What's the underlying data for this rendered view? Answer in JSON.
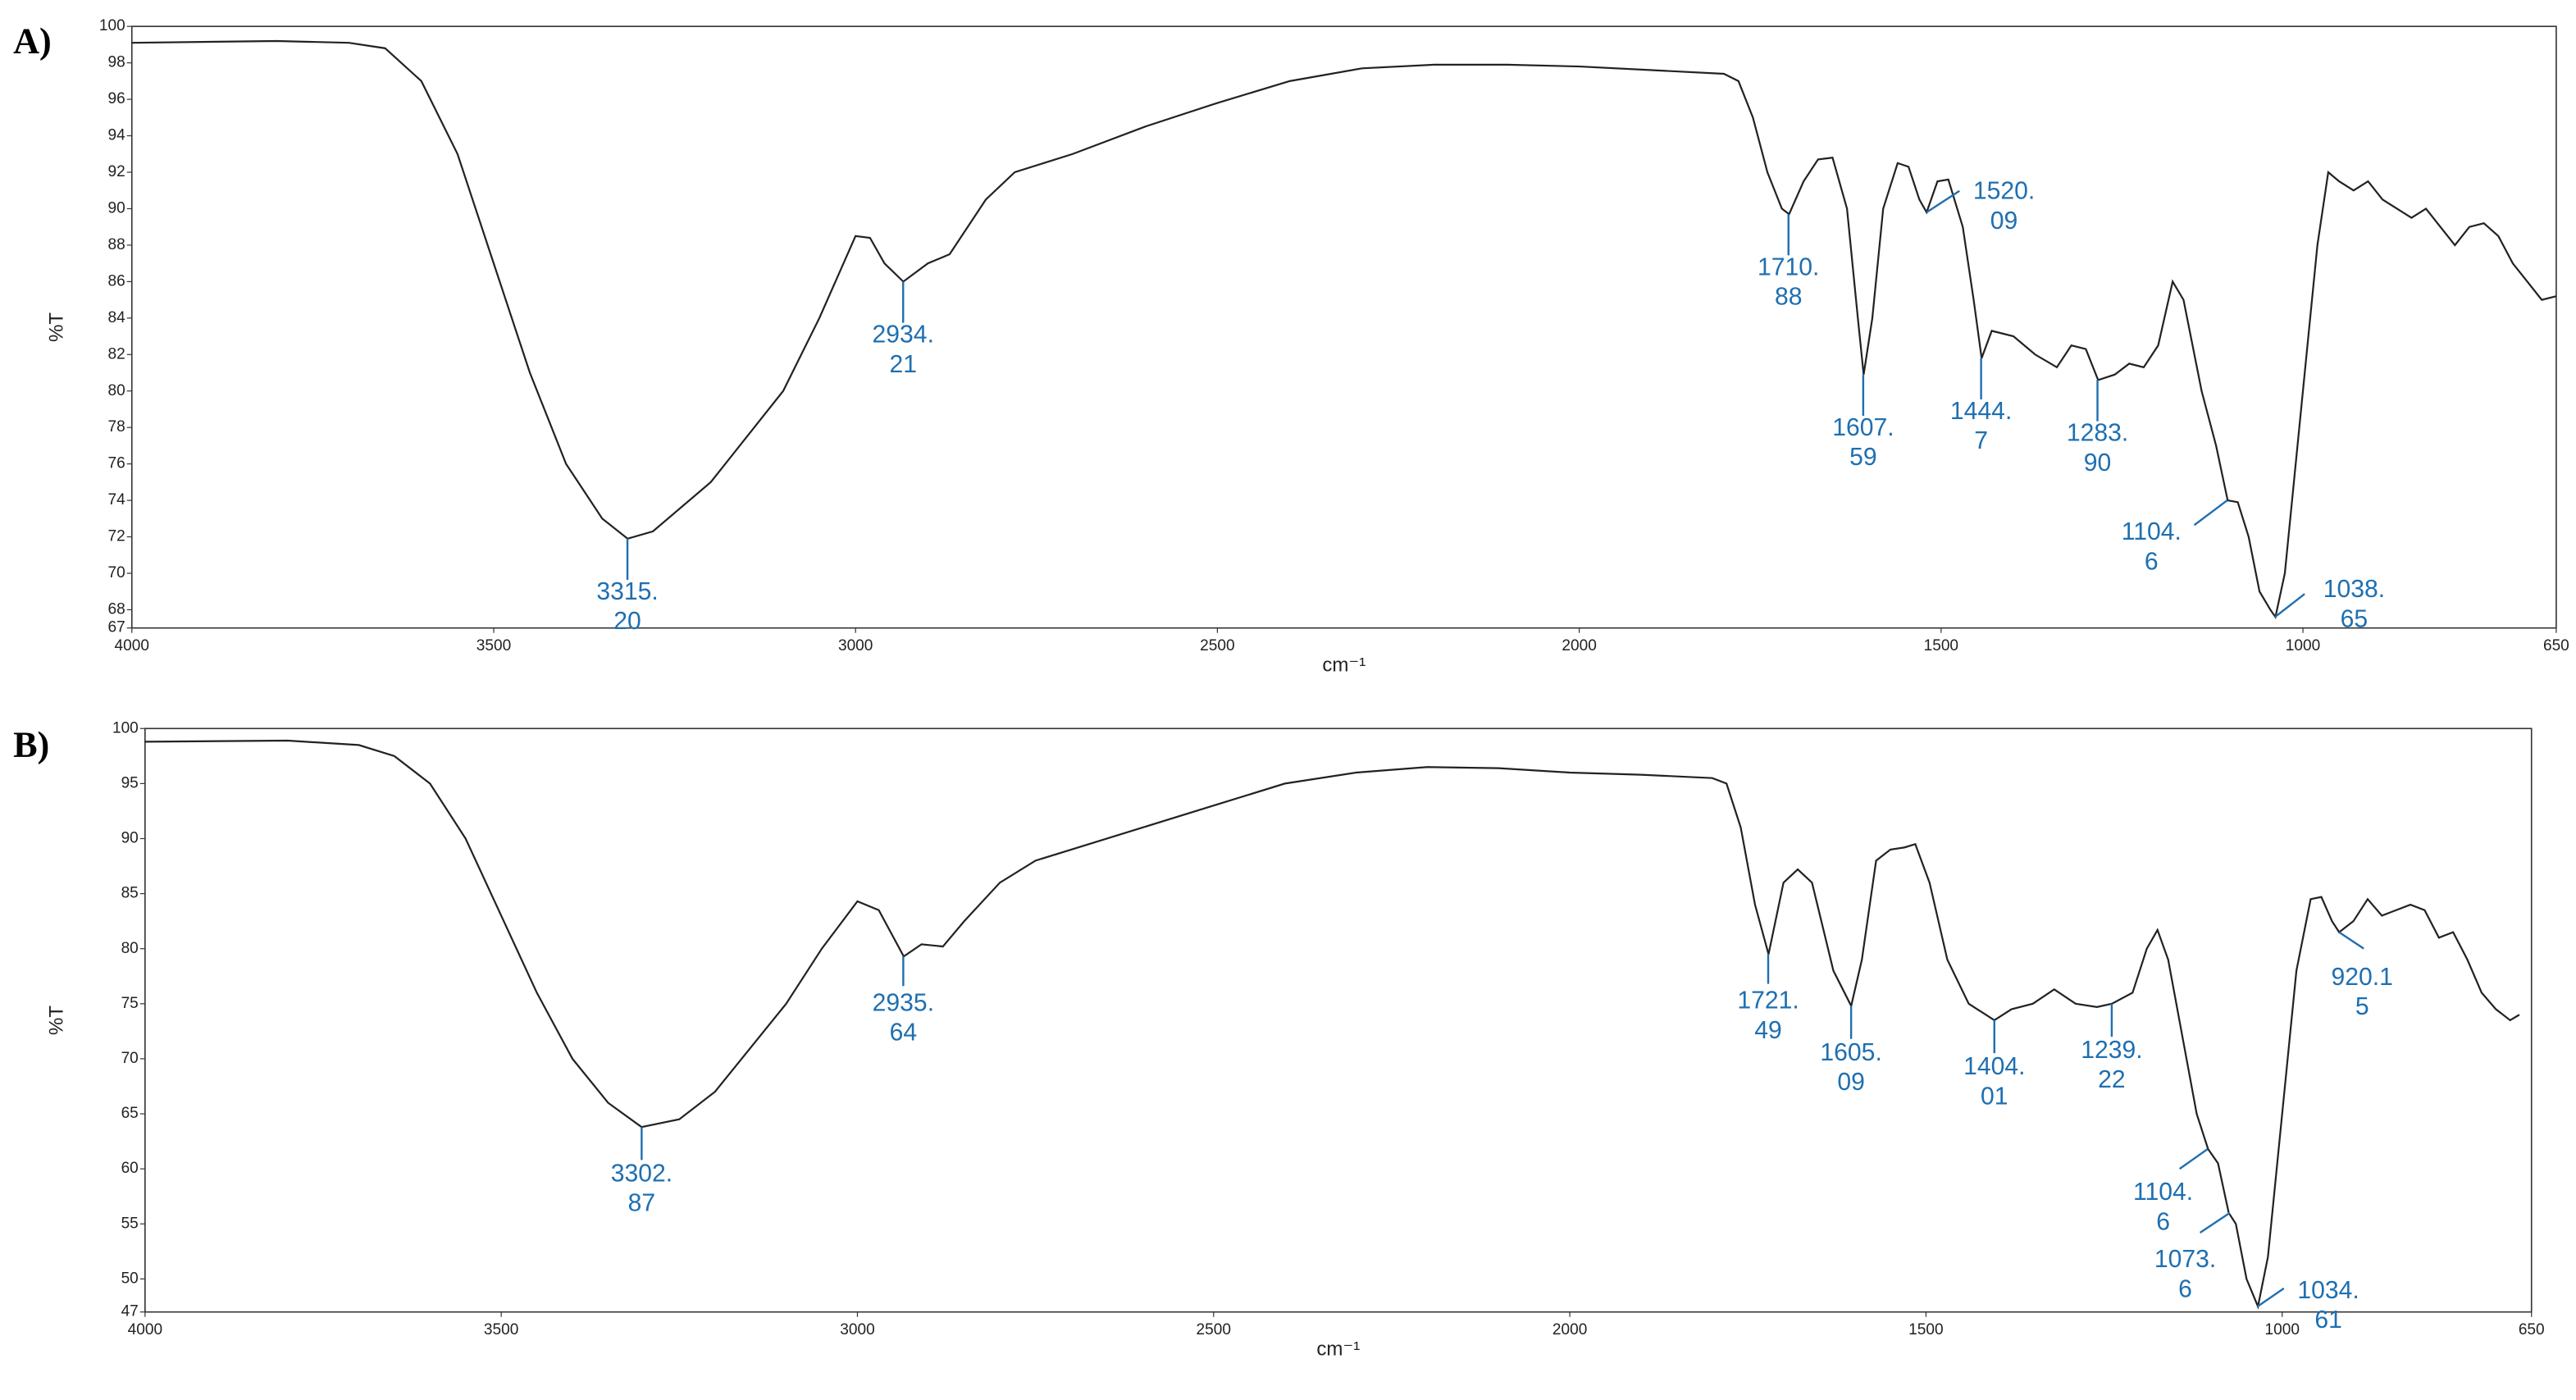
{
  "chart_data": [
    {
      "type": "line",
      "panel_label": "A)",
      "x_label": "cm⁻¹",
      "y_label": "%T",
      "color": "#222222",
      "annotation_color": "#1f6fb0",
      "xlim": [
        4000,
        650
      ],
      "xticks": [
        4000,
        3500,
        3000,
        2500,
        2000,
        1500,
        1000,
        650
      ],
      "ylim": [
        67,
        100
      ],
      "yticks": [
        67,
        68,
        70,
        72,
        74,
        76,
        78,
        80,
        82,
        84,
        86,
        88,
        90,
        92,
        94,
        96,
        98,
        100
      ],
      "x": [
        4000,
        3800,
        3700,
        3650,
        3600,
        3550,
        3500,
        3450,
        3400,
        3350,
        3315,
        3280,
        3200,
        3100,
        3050,
        3000,
        2980,
        2960,
        2934,
        2900,
        2870,
        2820,
        2780,
        2700,
        2600,
        2500,
        2400,
        2300,
        2200,
        2100,
        2000,
        1900,
        1800,
        1780,
        1760,
        1740,
        1720,
        1710,
        1690,
        1670,
        1650,
        1630,
        1615,
        1607,
        1595,
        1580,
        1560,
        1545,
        1530,
        1520,
        1505,
        1490,
        1470,
        1455,
        1444,
        1430,
        1400,
        1370,
        1340,
        1320,
        1300,
        1283,
        1260,
        1240,
        1220,
        1200,
        1180,
        1165,
        1140,
        1120,
        1104,
        1090,
        1075,
        1060,
        1045,
        1038,
        1025,
        1000,
        980,
        965,
        950,
        930,
        910,
        890,
        870,
        850,
        830,
        810,
        790,
        770,
        750,
        730,
        710,
        690,
        670,
        650
      ],
      "values": [
        99.1,
        99.2,
        99.1,
        98.8,
        97,
        93,
        87,
        81,
        76,
        73,
        71.9,
        72.3,
        75,
        80,
        84,
        88.5,
        88.4,
        87,
        86,
        87,
        87.5,
        90.5,
        92,
        93,
        94.5,
        95.8,
        97,
        97.7,
        97.9,
        97.9,
        97.8,
        97.6,
        97.4,
        97,
        95,
        92,
        90,
        89.7,
        91.5,
        92.7,
        92.8,
        90,
        84,
        80.9,
        84,
        90,
        92.5,
        92.3,
        90.5,
        89.8,
        91.5,
        91.6,
        89,
        85,
        81.8,
        83.3,
        83,
        82,
        81.3,
        82.5,
        82.3,
        80.6,
        80.9,
        81.5,
        81.3,
        82.5,
        86,
        85,
        80,
        77,
        74,
        73.9,
        72,
        69,
        68,
        67.6,
        70,
        80,
        88,
        92,
        91.5,
        91,
        91.5,
        90.5,
        90,
        89.5,
        90,
        89,
        88,
        89,
        89.2,
        88.5,
        87,
        86,
        85,
        85.2
      ],
      "annotations": [
        {
          "x": 3315.2,
          "y": 71.9,
          "label": [
            "3315.",
            "20"
          ]
        },
        {
          "x": 2934.21,
          "y": 86,
          "label": [
            "2934.",
            "21"
          ]
        },
        {
          "x": 1710.88,
          "y": 89.7,
          "label": [
            "1710.",
            "88"
          ]
        },
        {
          "x": 1607.59,
          "y": 80.9,
          "label": [
            "1607.",
            "59"
          ]
        },
        {
          "x": 1520.09,
          "y": 89.8,
          "label": [
            "1520.",
            "09"
          ]
        },
        {
          "x": 1444.7,
          "y": 81.8,
          "label": [
            "1444.",
            "7"
          ]
        },
        {
          "x": 1283.9,
          "y": 80.6,
          "label": [
            "1283.",
            "90"
          ]
        },
        {
          "x": 1104.6,
          "y": 74,
          "label": [
            "1104.",
            "6"
          ]
        },
        {
          "x": 1038.65,
          "y": 67.6,
          "label": [
            "1038.",
            "65"
          ]
        }
      ]
    },
    {
      "type": "line",
      "panel_label": "B)",
      "x_label": "cm⁻¹",
      "y_label": "%T",
      "color": "#222222",
      "annotation_color": "#1f6fb0",
      "xlim": [
        4000,
        650
      ],
      "xticks": [
        4000,
        3500,
        3000,
        2500,
        2000,
        1500,
        1000,
        650
      ],
      "ylim": [
        47,
        100
      ],
      "yticks": [
        47,
        50,
        55,
        60,
        65,
        70,
        75,
        80,
        85,
        90,
        95,
        100
      ],
      "x": [
        4000,
        3800,
        3700,
        3650,
        3600,
        3550,
        3500,
        3450,
        3400,
        3350,
        3303,
        3250,
        3200,
        3100,
        3050,
        3000,
        2970,
        2935,
        2910,
        2880,
        2850,
        2800,
        2750,
        2700,
        2600,
        2500,
        2400,
        2300,
        2200,
        2100,
        2000,
        1900,
        1800,
        1780,
        1760,
        1740,
        1721,
        1700,
        1680,
        1660,
        1630,
        1605,
        1590,
        1570,
        1550,
        1530,
        1515,
        1495,
        1470,
        1440,
        1404,
        1380,
        1350,
        1320,
        1290,
        1260,
        1239,
        1210,
        1190,
        1175,
        1160,
        1140,
        1120,
        1104,
        1090,
        1075,
        1065,
        1050,
        1034,
        1020,
        1000,
        980,
        960,
        945,
        930,
        920,
        900,
        880,
        860,
        840,
        820,
        800,
        780,
        760,
        740,
        720,
        700,
        680,
        667
      ],
      "values": [
        98.8,
        98.9,
        98.5,
        97.5,
        95,
        90,
        83,
        76,
        70,
        66,
        63.8,
        64.5,
        67,
        75,
        80,
        84.3,
        83.5,
        79.3,
        80.4,
        80.2,
        82.5,
        86,
        88,
        89,
        91,
        93,
        95,
        96,
        96.5,
        96.4,
        96,
        95.8,
        95.5,
        95,
        91,
        84,
        79.5,
        86,
        87.2,
        86,
        78,
        74.8,
        79,
        88,
        89,
        89.2,
        89.5,
        86,
        79,
        75,
        73.5,
        74.5,
        75,
        76.3,
        75,
        74.7,
        75,
        76,
        80,
        81.7,
        79,
        72,
        65,
        61.8,
        60.5,
        56,
        55,
        50,
        47.5,
        52,
        65,
        78,
        84.5,
        84.7,
        82.5,
        81.5,
        82.5,
        84.5,
        83,
        83.5,
        84,
        83.5,
        81,
        81.5,
        79,
        76,
        74.5,
        73.5,
        74
      ],
      "annotations": [
        {
          "x": 3302.87,
          "y": 63.8,
          "label": [
            "3302.",
            "87"
          ]
        },
        {
          "x": 2935.64,
          "y": 79.3,
          "label": [
            "2935.",
            "64"
          ]
        },
        {
          "x": 1721.49,
          "y": 79.5,
          "label": [
            "1721.",
            "49"
          ]
        },
        {
          "x": 1605.09,
          "y": 74.8,
          "label": [
            "1605.",
            "09"
          ]
        },
        {
          "x": 1404.01,
          "y": 73.5,
          "label": [
            "1404.",
            "01"
          ]
        },
        {
          "x": 1239.22,
          "y": 75,
          "label": [
            "1239.",
            "22"
          ]
        },
        {
          "x": 920.15,
          "y": 81.5,
          "label": [
            "920.1",
            "5"
          ]
        },
        {
          "x": 1104.6,
          "y": 61.8,
          "label": [
            "1104.",
            "6"
          ]
        },
        {
          "x": 1073.6,
          "y": 56,
          "label": [
            "1073.",
            "6"
          ]
        },
        {
          "x": 1034.61,
          "y": 47.5,
          "label": [
            "1034.",
            "61"
          ]
        }
      ]
    }
  ]
}
